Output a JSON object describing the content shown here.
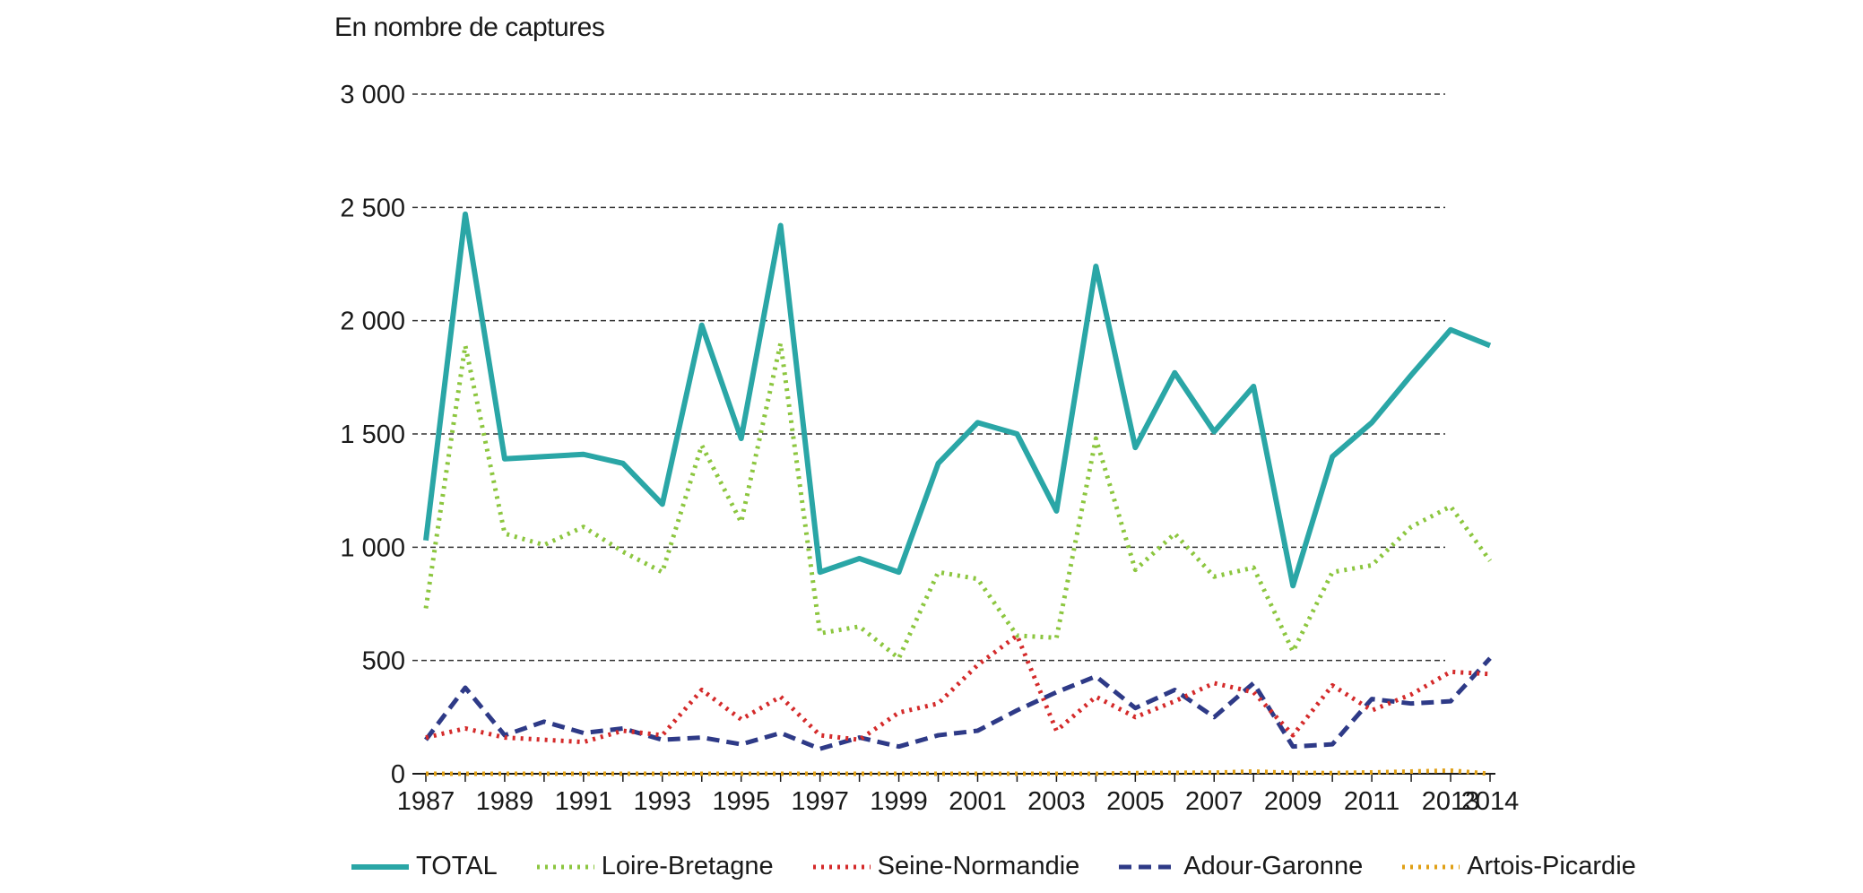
{
  "chart_data": {
    "type": "line",
    "title": "",
    "ylabel": "En nombre de captures",
    "xlabel": "",
    "ylim": [
      0,
      3000
    ],
    "xlim": [
      1987,
      2014
    ],
    "y_ticks": [
      0,
      500,
      1000,
      1500,
      2000,
      2500,
      3000
    ],
    "y_tick_labels": [
      "0",
      "500",
      "1 000",
      "1 500",
      "2 000",
      "2 500",
      "3 000"
    ],
    "x_ticks": [
      1987,
      1989,
      1991,
      1993,
      1995,
      1997,
      1999,
      2001,
      2003,
      2005,
      2007,
      2009,
      2011,
      2013,
      2014
    ],
    "x_tick_labels": [
      "1987",
      "1989",
      "1991",
      "1993",
      "1995",
      "1997",
      "1999",
      "2001",
      "2003",
      "2005",
      "2007",
      "2009",
      "2011",
      "2013",
      "2014"
    ],
    "grid": "horizontal dashed",
    "legend_position": "bottom",
    "x": [
      1987,
      1988,
      1989,
      1990,
      1991,
      1992,
      1993,
      1994,
      1995,
      1996,
      1997,
      1998,
      1999,
      2000,
      2001,
      2002,
      2003,
      2004,
      2005,
      2006,
      2007,
      2008,
      2009,
      2010,
      2011,
      2012,
      2013,
      2014
    ],
    "series": [
      {
        "name": "TOTAL",
        "color": "#2aa6a6",
        "style": "solid",
        "values": [
          1030,
          2470,
          1390,
          1400,
          1410,
          1370,
          1190,
          1980,
          1480,
          2420,
          890,
          950,
          890,
          1370,
          1550,
          1500,
          1160,
          2240,
          1440,
          1770,
          1510,
          1710,
          830,
          1400,
          1550,
          1760,
          1960,
          1890
        ]
      },
      {
        "name": "Loire-Bretagne",
        "color": "#8cc63f",
        "style": "dotted",
        "values": [
          730,
          1890,
          1060,
          1010,
          1090,
          980,
          890,
          1450,
          1110,
          1900,
          620,
          650,
          510,
          890,
          860,
          610,
          600,
          1480,
          900,
          1060,
          870,
          910,
          540,
          890,
          920,
          1090,
          1180,
          940
        ]
      },
      {
        "name": "Seine-Normandie",
        "color": "#d42a2a",
        "style": "dotted",
        "values": [
          160,
          200,
          160,
          150,
          140,
          190,
          170,
          370,
          240,
          340,
          170,
          150,
          270,
          310,
          480,
          610,
          190,
          340,
          250,
          320,
          400,
          360,
          170,
          390,
          280,
          350,
          450,
          440
        ]
      },
      {
        "name": "Adour-Garonne",
        "color": "#2e3a87",
        "style": "dashed",
        "values": [
          150,
          380,
          170,
          230,
          180,
          200,
          150,
          160,
          130,
          180,
          110,
          160,
          120,
          170,
          190,
          280,
          360,
          430,
          290,
          370,
          250,
          400,
          120,
          130,
          330,
          310,
          320,
          510
        ]
      },
      {
        "name": "Artois-Picardie",
        "color": "#e0a016",
        "style": "dotted",
        "values": [
          0,
          0,
          0,
          0,
          0,
          0,
          0,
          0,
          0,
          0,
          0,
          0,
          0,
          0,
          0,
          0,
          0,
          0,
          3,
          4,
          5,
          10,
          4,
          3,
          6,
          10,
          14,
          0
        ]
      }
    ]
  }
}
